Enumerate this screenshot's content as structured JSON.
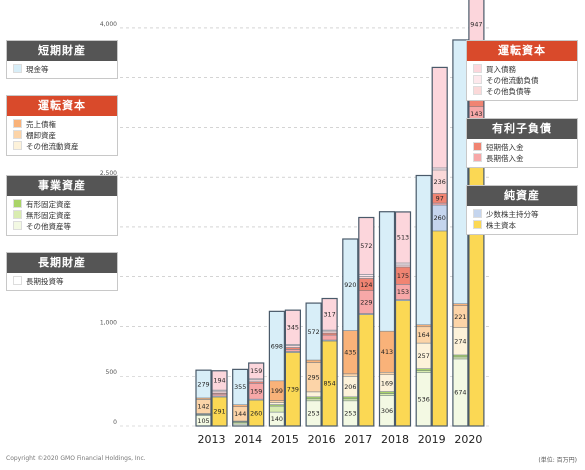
{
  "chart_data": {
    "type": "bar",
    "categories": [
      "2013",
      "2014",
      "2015",
      "2016",
      "2017",
      "2018",
      "2019",
      "2020"
    ],
    "ylim": [
      0,
      4200
    ],
    "yticks": [
      0,
      500,
      1000,
      1500,
      2000,
      2500,
      3000,
      3500,
      4000
    ],
    "ytick_labels": [
      "0",
      "500",
      "1,000",
      "1,500",
      "2,000",
      "2,500",
      "3,000",
      "3,500",
      "4,000"
    ],
    "grid": true,
    "assets": [
      {
        "name": "長期投資等",
        "values": [
          0,
          0,
          0,
          0,
          0,
          0,
          0,
          0
        ]
      },
      {
        "name": "その他資産等",
        "values": [
          105,
          20,
          140,
          253,
          253,
          306,
          536,
          674
        ]
      },
      {
        "name": "無形固定資産",
        "values": [
          10,
          15,
          60,
          20,
          20,
          20,
          20,
          20
        ]
      },
      {
        "name": "有形固定資産",
        "values": [
          5,
          10,
          15,
          20,
          20,
          20,
          20,
          20
        ]
      },
      {
        "name": "その他流動資産",
        "values": [
          5,
          5,
          20,
          50,
          206,
          169,
          257,
          274
        ]
      },
      {
        "name": "棚卸資産",
        "values": [
          142,
          144,
          20,
          295,
          25,
          25,
          164,
          221
        ]
      },
      {
        "name": "売上債権",
        "values": [
          15,
          20,
          199,
          25,
          435,
          413,
          20,
          20
        ]
      },
      {
        "name": "現金等",
        "values": [
          279,
          355,
          698,
          572,
          920,
          1200,
          1500,
          2650
        ]
      }
    ],
    "liabilities": [
      {
        "name": "株主資本",
        "values": [
          291,
          260,
          739,
          854,
          1120,
          1260,
          1960,
          2800
        ]
      },
      {
        "name": "少数株主持分等",
        "values": [
          10,
          10,
          10,
          10,
          10,
          10,
          260,
          265
        ]
      },
      {
        "name": "長期借入金",
        "values": [
          20,
          159,
          20,
          50,
          229,
          153,
          20,
          143
        ]
      },
      {
        "name": "短期借入金",
        "values": [
          10,
          15,
          20,
          20,
          124,
          175,
          97,
          313
        ]
      },
      {
        "name": "その他負債等",
        "values": [
          20,
          20,
          20,
          20,
          20,
          20,
          236,
          20
        ]
      },
      {
        "name": "その他流動負債",
        "values": [
          10,
          10,
          10,
          10,
          20,
          20,
          20,
          20
        ]
      },
      {
        "name": "買入債務",
        "values": [
          194,
          159,
          345,
          317,
          572,
          513,
          1010,
          947
        ]
      }
    ],
    "asset_labels": [
      {
        "year": "2013",
        "series": "その他資産等",
        "text": "105"
      },
      {
        "year": "2013",
        "series": "棚卸資産",
        "text": "142"
      },
      {
        "year": "2013",
        "series": "現金等",
        "text": "279"
      },
      {
        "year": "2014",
        "series": "棚卸資産",
        "text": "144"
      },
      {
        "year": "2014",
        "series": "現金等",
        "text": "355"
      },
      {
        "year": "2015",
        "series": "その他資産等",
        "text": "140"
      },
      {
        "year": "2015",
        "series": "売上債権",
        "text": "199"
      },
      {
        "year": "2015",
        "series": "現金等",
        "text": "698"
      },
      {
        "year": "2016",
        "series": "その他資産等",
        "text": "253"
      },
      {
        "year": "2016",
        "series": "棚卸資産",
        "text": "295"
      },
      {
        "year": "2016",
        "series": "現金等",
        "text": "572"
      },
      {
        "year": "2017",
        "series": "その他資産等",
        "text": "253"
      },
      {
        "year": "2017",
        "series": "その他流動資産",
        "text": "206"
      },
      {
        "year": "2017",
        "series": "売上債権",
        "text": "435"
      },
      {
        "year": "2017",
        "series": "現金等",
        "text": "920"
      },
      {
        "year": "2018",
        "series": "その他資産等",
        "text": "306"
      },
      {
        "year": "2018",
        "series": "その他流動資産",
        "text": "169"
      },
      {
        "year": "2018",
        "series": "売上債権",
        "text": "413"
      },
      {
        "year": "2019",
        "series": "その他資産等",
        "text": "536"
      },
      {
        "year": "2019",
        "series": "その他流動資産",
        "text": "257"
      },
      {
        "year": "2019",
        "series": "棚卸資産",
        "text": "164"
      },
      {
        "year": "2020",
        "series": "その他資産等",
        "text": "674"
      },
      {
        "year": "2020",
        "series": "その他流動資産",
        "text": "274"
      },
      {
        "year": "2020",
        "series": "棚卸資産",
        "text": "221"
      }
    ],
    "liability_labels": [
      {
        "year": "2013",
        "series": "株主資本",
        "text": "291"
      },
      {
        "year": "2013",
        "series": "買入債務",
        "text": "194"
      },
      {
        "year": "2014",
        "series": "株主資本",
        "text": "260"
      },
      {
        "year": "2014",
        "series": "長期借入金",
        "text": "159"
      },
      {
        "year": "2014",
        "series": "買入債務",
        "text": "159"
      },
      {
        "year": "2015",
        "series": "株主資本",
        "text": "739"
      },
      {
        "year": "2015",
        "series": "買入債務",
        "text": "345"
      },
      {
        "year": "2016",
        "series": "株主資本",
        "text": "854"
      },
      {
        "year": "2016",
        "series": "買入債務",
        "text": "317"
      },
      {
        "year": "2017",
        "series": "長期借入金",
        "text": "229"
      },
      {
        "year": "2017",
        "series": "短期借入金",
        "text": "124"
      },
      {
        "year": "2017",
        "series": "買入債務",
        "text": "572"
      },
      {
        "year": "2018",
        "series": "長期借入金",
        "text": "153"
      },
      {
        "year": "2018",
        "series": "短期借入金",
        "text": "175"
      },
      {
        "year": "2018",
        "series": "買入債務",
        "text": "513"
      },
      {
        "year": "2019",
        "series": "少数株主持分等",
        "text": "260"
      },
      {
        "year": "2019",
        "series": "その他負債等",
        "text": "236"
      },
      {
        "year": "2019",
        "series": "短期借入金",
        "text": "97"
      },
      {
        "year": "2020",
        "series": "少数株主持分等",
        "text": "265"
      },
      {
        "year": "2020",
        "series": "長期借入金",
        "text": "143"
      },
      {
        "year": "2020",
        "series": "短期借入金",
        "text": "313"
      },
      {
        "year": "2020",
        "series": "買入債務",
        "text": "947"
      }
    ]
  },
  "colors": {
    "長期投資等": "#ffffff",
    "その他資産等": "#f3f9e3",
    "無形固定資産": "#d9ecb0",
    "有形固定資産": "#a9d468",
    "その他流動資産": "#fdf2da",
    "棚卸資産": "#fcd4a8",
    "売上債権": "#f9b279",
    "現金等": "#d8eef8",
    "株主資本": "#fbd854",
    "少数株主持分等": "#c5d5ee",
    "長期借入金": "#f7a8a8",
    "短期借入金": "#f08472",
    "その他負債等": "#fbd9d9",
    "その他流動負債": "#fde8ec",
    "買入債務": "#fcd6dc",
    "header_gray": "#555555",
    "header_red": "#d94a2b",
    "axis_text": "#333333",
    "grid": "#bbbbbb",
    "bar_border": "#4a5a6a"
  },
  "legends_left": [
    {
      "id": "short-term-assets",
      "title": "短期財産",
      "header": "gray",
      "items": [
        "現金等"
      ]
    },
    {
      "id": "working-capital-assets",
      "title": "運転資本",
      "header": "red",
      "items": [
        "売上債権",
        "棚卸資産",
        "その他流動資産"
      ]
    },
    {
      "id": "business-assets",
      "title": "事業資産",
      "header": "gray",
      "items": [
        "有形固定資産",
        "無形固定資産",
        "その他資産等"
      ]
    },
    {
      "id": "long-term-assets",
      "title": "長期財産",
      "header": "gray",
      "items": [
        "長期投資等"
      ]
    }
  ],
  "legends_right": [
    {
      "id": "working-capital-liabilities",
      "title": "運転資本",
      "header": "red",
      "items": [
        "買入債務",
        "その他流動負債",
        "その他負債等"
      ]
    },
    {
      "id": "interest-bearing-debt",
      "title": "有利子負債",
      "header": "gray",
      "items": [
        "短期借入金",
        "長期借入金"
      ]
    },
    {
      "id": "net-assets",
      "title": "純資産",
      "header": "gray",
      "items": [
        "少数株主持分等",
        "株主資本"
      ]
    }
  ],
  "footer": {
    "copyright": "Copyright ©2020 GMO Financial Holdings, Inc.",
    "unit": "(単位: 百万円)"
  }
}
